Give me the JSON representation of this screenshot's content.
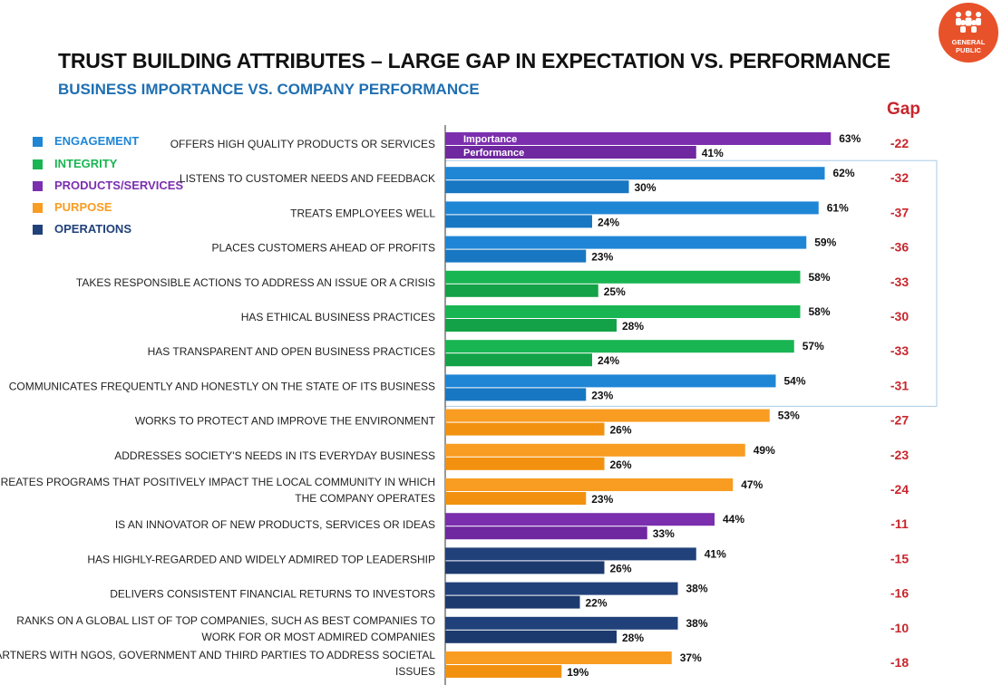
{
  "header": {
    "title": "TRUST BUILDING ATTRIBUTES – LARGE GAP IN EXPECTATION VS. PERFORMANCE",
    "subtitle": "BUSINESS IMPORTANCE VS. COMPANY PERFORMANCE",
    "badge_line1": "GENERAL",
    "badge_line2": "PUBLIC",
    "gap_header": "Gap"
  },
  "legend": [
    {
      "label": "ENGAGEMENT",
      "color": "#1f86d6"
    },
    {
      "label": "INTEGRITY",
      "color": "#19b552"
    },
    {
      "label": "PRODUCTS/SERVICES",
      "color": "#7b2fae"
    },
    {
      "label": "PURPOSE",
      "color": "#f99c22"
    },
    {
      "label": "OPERATIONS",
      "color": "#21417a"
    }
  ],
  "chart_data": {
    "type": "bar",
    "orientation": "horizontal",
    "series": [
      {
        "name": "Importance",
        "values": [
          63,
          62,
          61,
          59,
          58,
          58,
          57,
          54,
          53,
          49,
          47,
          44,
          41,
          38,
          38,
          37
        ]
      },
      {
        "name": "Performance",
        "values": [
          41,
          30,
          24,
          23,
          25,
          28,
          24,
          23,
          26,
          26,
          23,
          33,
          26,
          22,
          28,
          19
        ]
      }
    ],
    "categories": [
      {
        "label": [
          "OFFERS HIGH QUALITY PRODUCTS OR SERVICES"
        ],
        "group": "PRODUCTS/SERVICES",
        "gap": "-22"
      },
      {
        "label": [
          "LISTENS TO CUSTOMER NEEDS AND FEEDBACK"
        ],
        "group": "ENGAGEMENT",
        "gap": "-32"
      },
      {
        "label": [
          "TREATS EMPLOYEES WELL"
        ],
        "group": "ENGAGEMENT",
        "gap": "-37"
      },
      {
        "label": [
          "PLACES CUSTOMERS AHEAD OF PROFITS"
        ],
        "group": "ENGAGEMENT",
        "gap": "-36"
      },
      {
        "label": [
          "TAKES RESPONSIBLE ACTIONS TO ADDRESS AN ISSUE OR A CRISIS"
        ],
        "group": "INTEGRITY",
        "gap": "-33"
      },
      {
        "label": [
          "HAS ETHICAL BUSINESS PRACTICES"
        ],
        "group": "INTEGRITY",
        "gap": "-30"
      },
      {
        "label": [
          "HAS TRANSPARENT AND OPEN BUSINESS PRACTICES"
        ],
        "group": "INTEGRITY",
        "gap": "-33"
      },
      {
        "label": [
          "COMMUNICATES FREQUENTLY AND HONESTLY ON THE STATE OF ITS BUSINESS"
        ],
        "group": "ENGAGEMENT",
        "gap": "-31"
      },
      {
        "label": [
          "WORKS TO PROTECT AND IMPROVE THE ENVIRONMENT"
        ],
        "group": "PURPOSE",
        "gap": "-27"
      },
      {
        "label": [
          "ADDRESSES SOCIETY'S NEEDS IN ITS EVERYDAY BUSINESS"
        ],
        "group": "PURPOSE",
        "gap": "-23"
      },
      {
        "label": [
          "CREATES PROGRAMS THAT POSITIVELY IMPACT THE LOCAL COMMUNITY IN WHICH",
          "THE COMPANY OPERATES"
        ],
        "group": "PURPOSE",
        "gap": "-24"
      },
      {
        "label": [
          "IS AN INNOVATOR OF NEW PRODUCTS, SERVICES OR IDEAS"
        ],
        "group": "PRODUCTS/SERVICES",
        "gap": "-11"
      },
      {
        "label": [
          "HAS HIGHLY-REGARDED AND WIDELY ADMIRED TOP LEADERSHIP"
        ],
        "group": "OPERATIONS",
        "gap": "-15"
      },
      {
        "label": [
          "DELIVERS CONSISTENT FINANCIAL RETURNS TO INVESTORS"
        ],
        "group": "OPERATIONS",
        "gap": "-16"
      },
      {
        "label": [
          "RANKS ON A GLOBAL LIST OF TOP COMPANIES, SUCH AS BEST COMPANIES TO",
          "WORK FOR OR MOST ADMIRED COMPANIES"
        ],
        "group": "OPERATIONS",
        "gap": "-10"
      },
      {
        "label": [
          "PARTNERS WITH NGOS, GOVERNMENT AND THIRD PARTIES TO ADDRESS SOCIETAL",
          "ISSUES"
        ],
        "group": "PURPOSE",
        "gap": "-18"
      }
    ],
    "value_suffix": "%",
    "grid": false,
    "legend_position": "top-left",
    "highlight_box": {
      "from_category": 1,
      "to_category": 7
    }
  }
}
